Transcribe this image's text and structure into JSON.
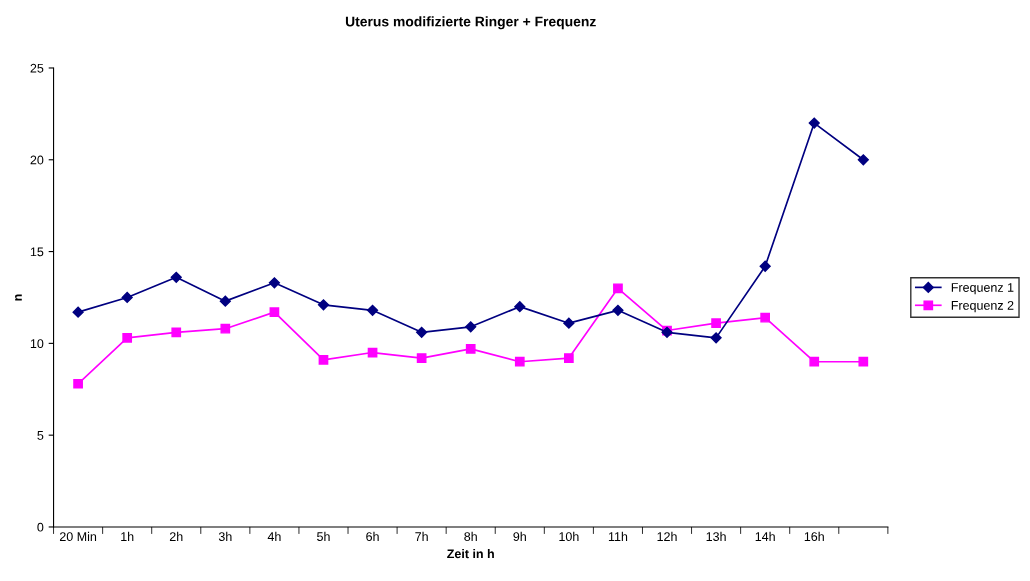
{
  "chart_data": {
    "type": "line",
    "title": "Uterus modifizierte Ringer + Frequenz",
    "xlabel": "Zeit in h",
    "ylabel": "n",
    "categories": [
      "20 Min",
      "1h",
      "2h",
      "3h",
      "4h",
      "5h",
      "6h",
      "7h",
      "8h",
      "9h",
      "10h",
      "11h",
      "12h",
      "13h",
      "14h",
      "16h",
      null
    ],
    "series": [
      {
        "name": "Frequenz 1",
        "color": "#000080",
        "marker": "diamond",
        "values": [
          11.7,
          12.5,
          13.6,
          12.3,
          13.3,
          12.1,
          11.8,
          10.6,
          10.9,
          12.0,
          11.1,
          11.8,
          10.6,
          10.3,
          14.2,
          22.0,
          20.0
        ]
      },
      {
        "name": "Frequenz 2",
        "color": "#ff00ff",
        "marker": "square",
        "values": [
          7.8,
          10.3,
          10.6,
          10.8,
          11.7,
          9.1,
          9.5,
          9.2,
          9.7,
          9.0,
          9.2,
          13.0,
          10.7,
          11.1,
          11.4,
          9.0,
          9.0
        ]
      }
    ],
    "ylim": [
      0,
      25
    ],
    "yticks": [
      0,
      5,
      10,
      15,
      20,
      25
    ],
    "grid": false,
    "legend": "right",
    "line_style": "solid"
  }
}
